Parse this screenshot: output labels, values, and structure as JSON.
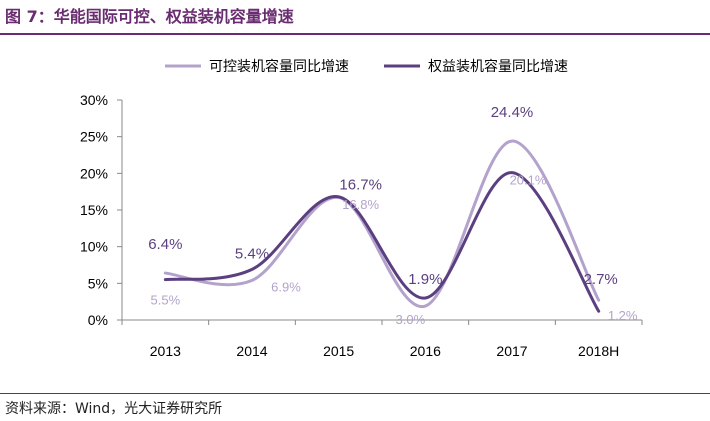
{
  "header": {
    "title": "图 7：华能国际可控、权益装机容量增速"
  },
  "footer": {
    "source": "资料来源：Wind，光大证券研究所"
  },
  "colors": {
    "brand": "#6a2c70",
    "series_light": "#b3a3cc",
    "series_dark": "#5b3f80"
  },
  "chart_data": {
    "type": "line",
    "title": "",
    "xlabel": "",
    "ylabel": "",
    "categories": [
      "2013",
      "2014",
      "2015",
      "2016",
      "2017",
      "2018H"
    ],
    "ylim": [
      0,
      30
    ],
    "yticks": [
      "0%",
      "5%",
      "10%",
      "15%",
      "20%",
      "25%",
      "30%"
    ],
    "smooth": true,
    "grid": false,
    "legend_position": "top",
    "series": [
      {
        "name": "可控装机容量同比增速",
        "values": [
          6.4,
          5.4,
          16.7,
          1.9,
          24.4,
          2.7
        ],
        "labels": [
          "6.4%",
          "5.4%",
          "16.7%",
          "1.9%",
          "24.4%",
          "2.7%"
        ],
        "color": "#b3a3cc"
      },
      {
        "name": "权益装机容量同比增速",
        "values": [
          5.5,
          6.9,
          16.8,
          3.0,
          20.1,
          1.2
        ],
        "labels": [
          "5.5%",
          "6.9%",
          "16.8%",
          "3.0%",
          "20.1%",
          "1.2%"
        ],
        "color": "#5b3f80"
      }
    ]
  }
}
